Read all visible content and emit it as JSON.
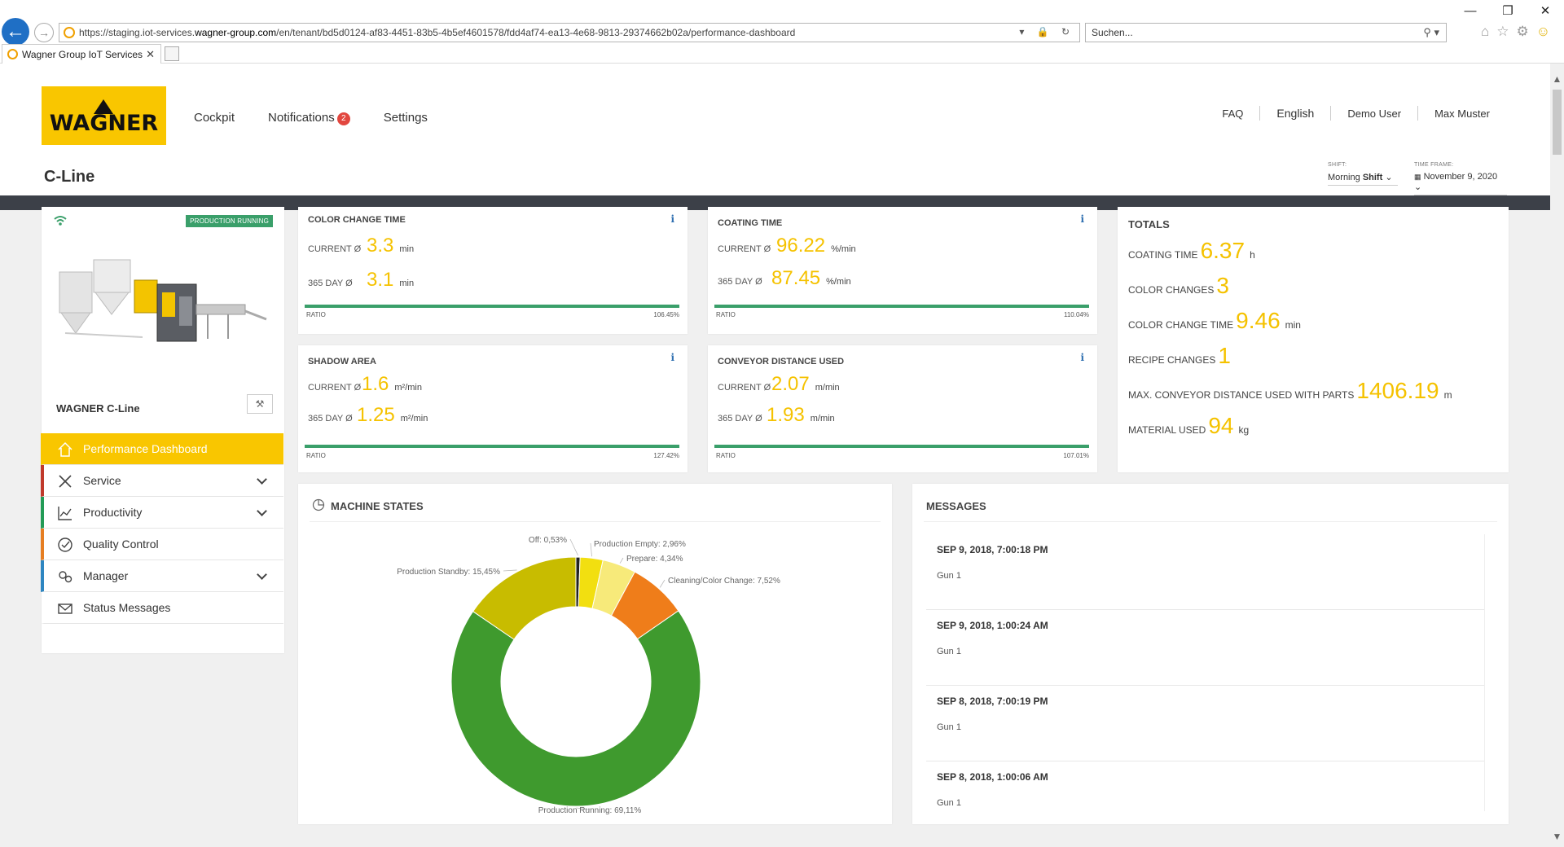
{
  "browser": {
    "url_prefix": "https://staging.iot-services.",
    "url_host": "wagner-group.com",
    "url_path": "/en/tenant/bd5d0124-af83-4451-83b5-4b5ef4601578/fdd4af74-ea13-4e68-9813-29374662b02a/performance-dashboard",
    "search_placeholder": "Suchen...",
    "tab_title": "Wagner Group IoT Services"
  },
  "header": {
    "logo": "WAGNER",
    "nav": [
      "Cockpit",
      "Notifications",
      "Settings"
    ],
    "notifications_count": "2",
    "faq": "FAQ",
    "language": "English",
    "demo_user": "Demo User",
    "user_name": "Max Muster"
  },
  "page": {
    "title": "C-Line",
    "shift_label": "SHIFT:",
    "shift_value_a": "Morning",
    "shift_value_b": "Shift",
    "timeframe_label": "TIME FRAME:",
    "timeframe_value": "November 9, 2020"
  },
  "sidebar": {
    "status_badge": "PRODUCTION RUNNING",
    "machine_name": "WAGNER C-Line",
    "menu": [
      "Performance Dashboard",
      "Service",
      "Productivity",
      "Quality Control",
      "Manager",
      "Status Messages"
    ]
  },
  "kpis": {
    "current_label": "CURRENT Ø",
    "day_label": "365 DAY Ø",
    "ratio_label_small": "RATIO",
    "ratio_label": "RATIO",
    "color_change_time": {
      "title": "COLOR CHANGE TIME",
      "current": "3.3",
      "day": "3.1",
      "unit": "min",
      "ratio": "106.45%"
    },
    "coating_time": {
      "title": "COATING TIME",
      "current": "96.22",
      "day": "87.45",
      "unit": "%/min",
      "ratio": "110.04%"
    },
    "shadow_area": {
      "title": "SHADOW AREA",
      "current": "1.6",
      "day": "1.25",
      "unit": "m²/min",
      "ratio": "127.42%"
    },
    "conveyor_distance": {
      "title": "CONVEYOR DISTANCE USED",
      "current": "2.07",
      "day": "1.93",
      "unit": "m/min",
      "ratio": "107.01%"
    }
  },
  "totals": {
    "title": "TOTALS",
    "coating_time": {
      "label": "COATING TIME",
      "value": "6.37",
      "unit": "h"
    },
    "color_changes": {
      "label": "COLOR CHANGES",
      "value": "3"
    },
    "color_change_time": {
      "label": "COLOR CHANGE TIME",
      "value": "9.46",
      "unit": "min"
    },
    "recipe_changes": {
      "label": "RECIPE CHANGES",
      "value": "1"
    },
    "max_conveyor": {
      "label": "MAX. CONVEYOR DISTANCE USED WITH PARTS",
      "value": "1406.19",
      "unit": "m"
    },
    "material_used": {
      "label": "MATERIAL USED",
      "value": "94",
      "unit": "kg"
    }
  },
  "machine_states": {
    "title": "MACHINE STATES"
  },
  "chart_data": {
    "type": "pie",
    "title": "MACHINE STATES",
    "slices": [
      {
        "label": "Off: 0,53%",
        "name": "Off",
        "value": 0.53,
        "color": "#222222"
      },
      {
        "label": "Production Empty: 2,96%",
        "name": "Production Empty",
        "value": 2.96,
        "color": "#f2df10"
      },
      {
        "label": "Prepare: 4,34%",
        "name": "Prepare",
        "value": 4.34,
        "color": "#f7ea7a"
      },
      {
        "label": "Cleaning/Color Change: 7,52%",
        "name": "Cleaning/Color Change",
        "value": 7.52,
        "color": "#ef7d1a"
      },
      {
        "label": "Production Running: 69,11%",
        "name": "Production Running",
        "value": 69.11,
        "color": "#3f9a2e"
      },
      {
        "label": "Production Standby: 15,45%",
        "name": "Production Standby",
        "value": 15.45,
        "color": "#c8bc00"
      }
    ]
  },
  "messages": {
    "title": "MESSAGES",
    "items": [
      {
        "date": "SEP 9, 2018, 7:00:18 PM",
        "source": "Gun 1"
      },
      {
        "date": "SEP 9, 2018, 1:00:24 AM",
        "source": "Gun 1"
      },
      {
        "date": "SEP 8, 2018, 7:00:19 PM",
        "source": "Gun 1"
      },
      {
        "date": "SEP 8, 2018, 1:00:06 AM",
        "source": "Gun 1"
      }
    ]
  }
}
